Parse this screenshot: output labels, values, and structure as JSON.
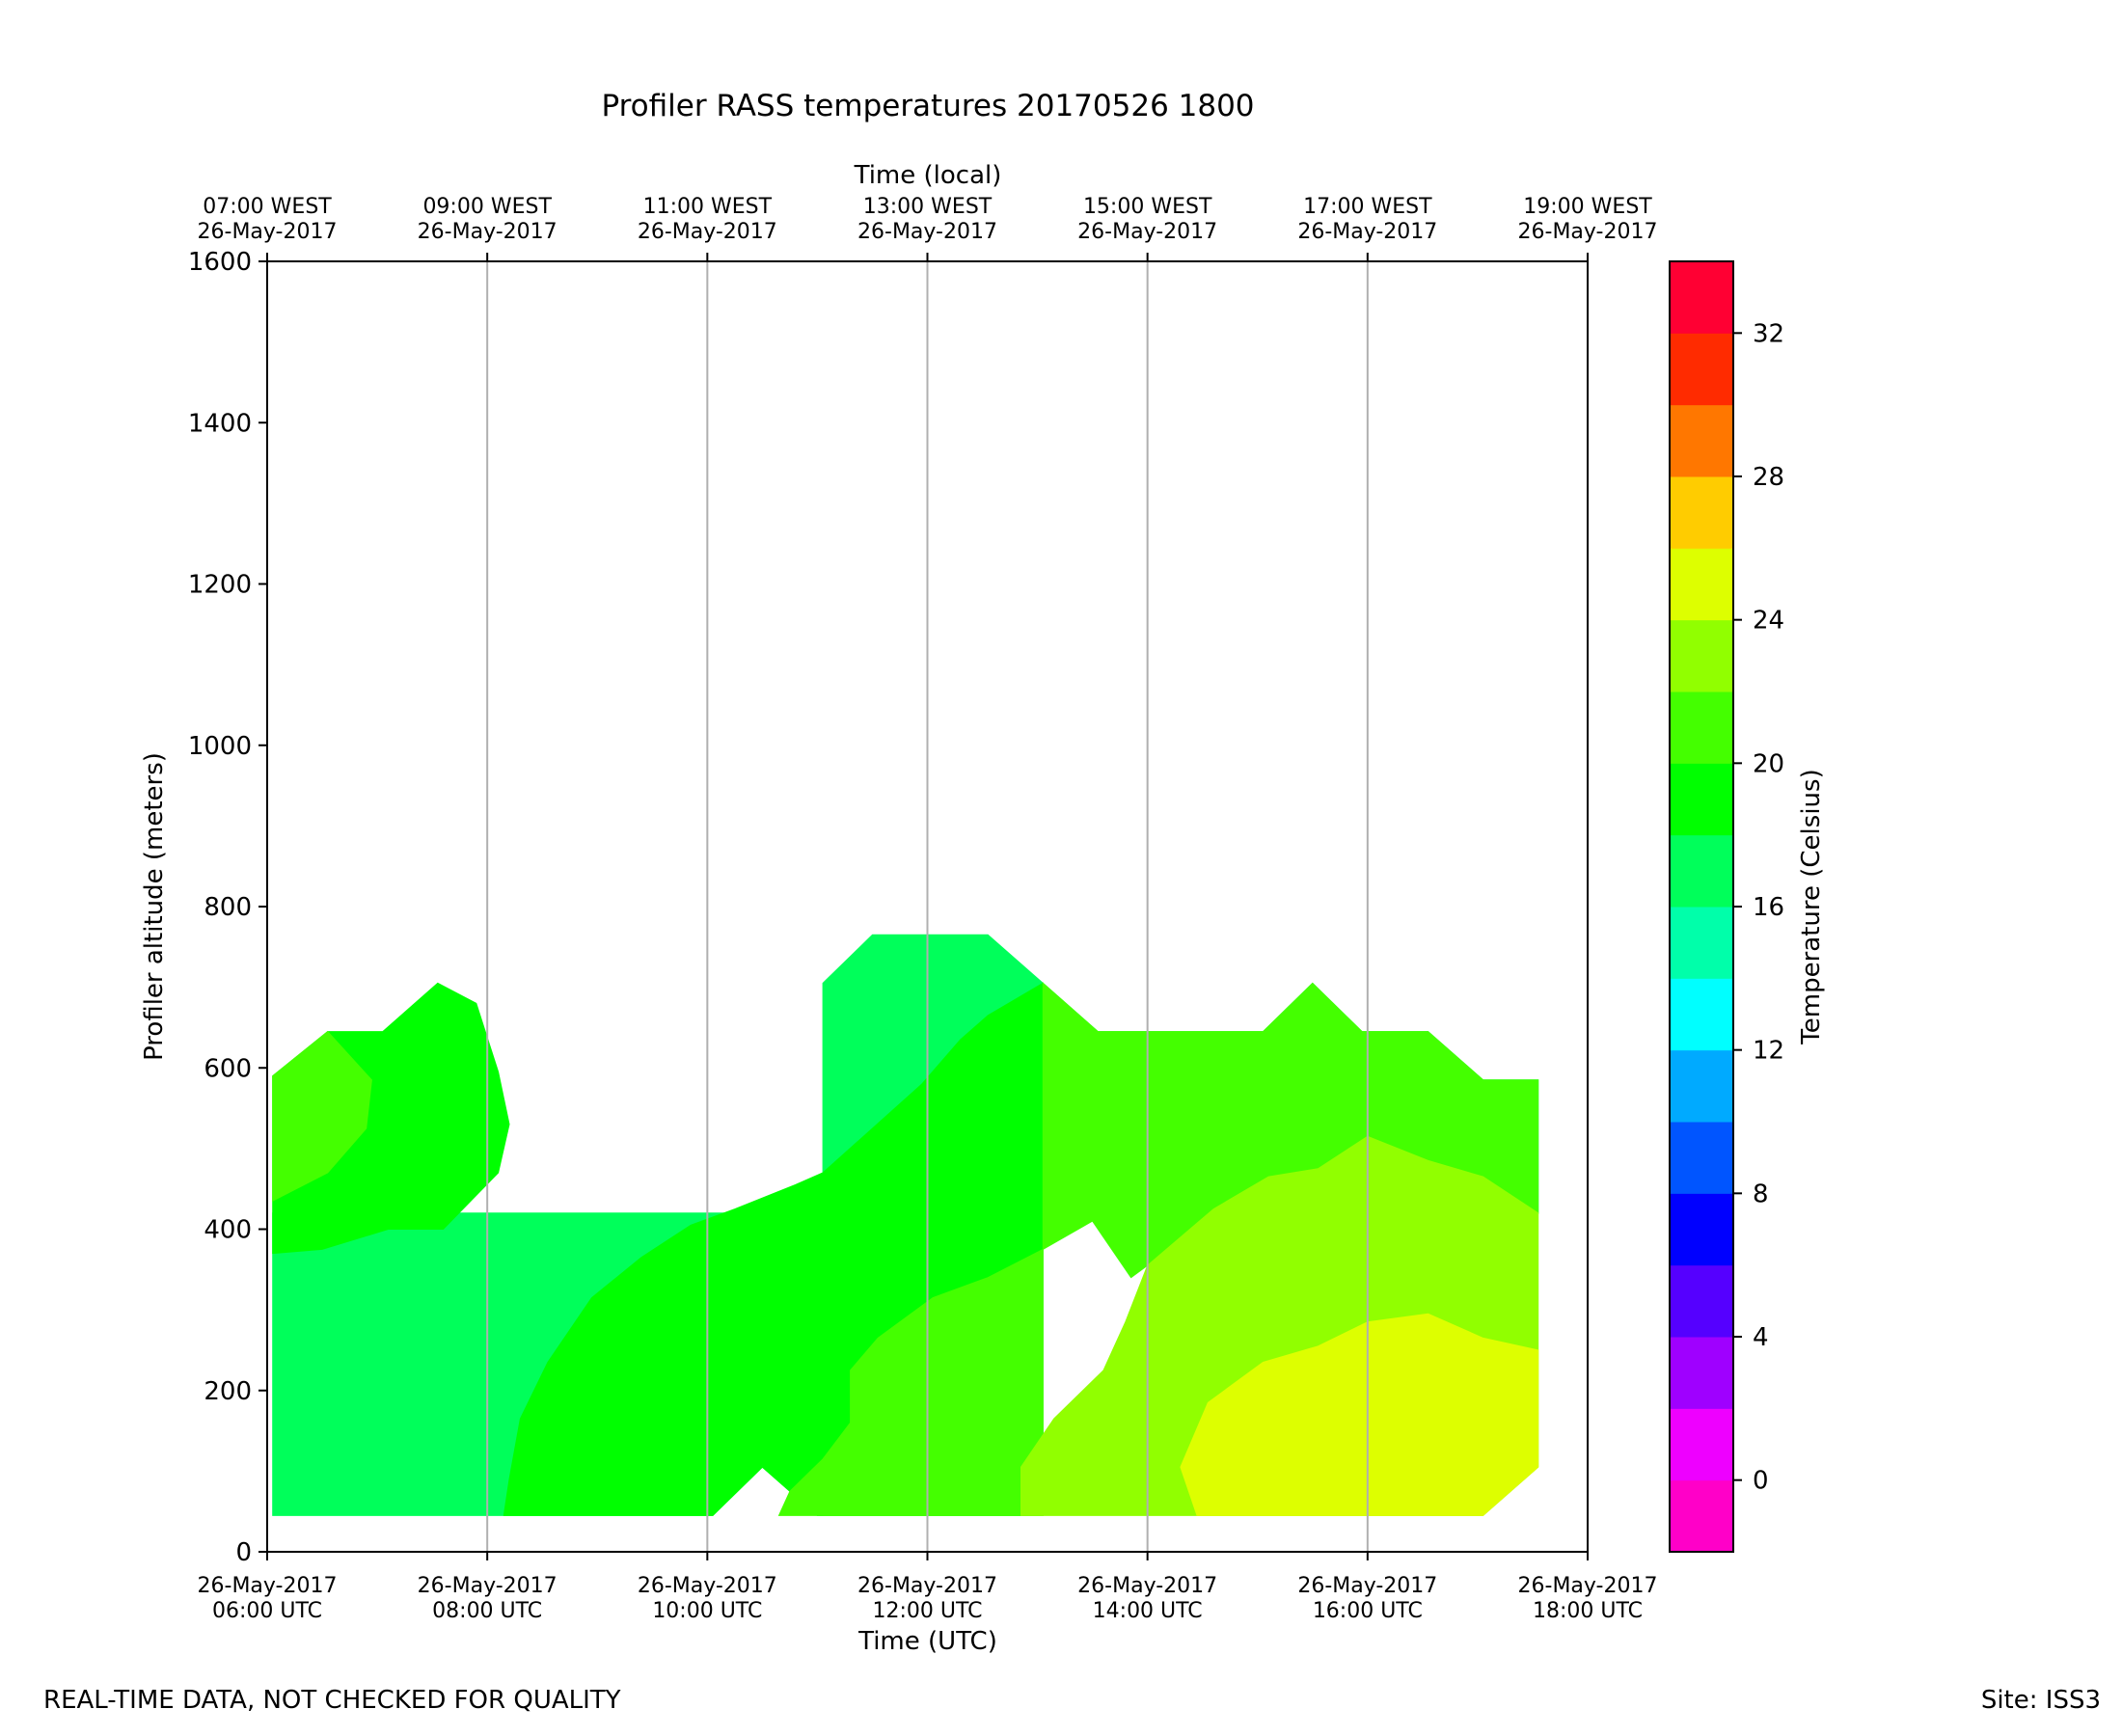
{
  "colors": {
    "background": "#ffffff",
    "axis": "#000000",
    "grid": "#b0b0b0"
  },
  "footer": {
    "disclaimer": "REAL-TIME DATA, NOT CHECKED FOR QUALITY",
    "site": "Site: ISS3"
  },
  "chart_data": {
    "type": "heatmap",
    "subtype": "filled-contour",
    "title": "Profiler RASS temperatures 20170526 1800",
    "xlabel": "Time (UTC)",
    "x2label": "Time (local)",
    "ylabel": "Profiler altitude (meters)",
    "colorbar_label": "Temperature (Celsius)",
    "xlim": [
      6,
      18
    ],
    "ylim": [
      0,
      1600
    ],
    "grid": "vertical",
    "x_ticks": [
      6,
      8,
      10,
      12,
      14,
      16,
      18
    ],
    "x_tick_labels": [
      [
        "26-May-2017",
        "06:00 UTC"
      ],
      [
        "26-May-2017",
        "08:00 UTC"
      ],
      [
        "26-May-2017",
        "10:00 UTC"
      ],
      [
        "26-May-2017",
        "12:00 UTC"
      ],
      [
        "26-May-2017",
        "14:00 UTC"
      ],
      [
        "26-May-2017",
        "16:00 UTC"
      ],
      [
        "26-May-2017",
        "18:00 UTC"
      ]
    ],
    "x2_tick_labels": [
      [
        "07:00 WEST",
        "26-May-2017"
      ],
      [
        "09:00 WEST",
        "26-May-2017"
      ],
      [
        "11:00 WEST",
        "26-May-2017"
      ],
      [
        "13:00 WEST",
        "26-May-2017"
      ],
      [
        "15:00 WEST",
        "26-May-2017"
      ],
      [
        "17:00 WEST",
        "26-May-2017"
      ],
      [
        "19:00 WEST",
        "26-May-2017"
      ]
    ],
    "y_ticks": [
      0,
      200,
      400,
      600,
      800,
      1000,
      1200,
      1400,
      1600
    ],
    "colorbar": {
      "min": -2,
      "max": 34,
      "step": 2,
      "ticks": [
        0,
        4,
        8,
        12,
        16,
        20,
        24,
        28,
        32
      ],
      "bands": [
        {
          "from": -2,
          "to": 0,
          "color": "#ff00c8"
        },
        {
          "from": 0,
          "to": 2,
          "color": "#ee00ff"
        },
        {
          "from": 2,
          "to": 4,
          "color": "#9f00ff"
        },
        {
          "from": 4,
          "to": 6,
          "color": "#5500ff"
        },
        {
          "from": 6,
          "to": 8,
          "color": "#0000ff"
        },
        {
          "from": 8,
          "to": 10,
          "color": "#0055ff"
        },
        {
          "from": 10,
          "to": 12,
          "color": "#00aaff"
        },
        {
          "from": 12,
          "to": 14,
          "color": "#00ffff"
        },
        {
          "from": 14,
          "to": 16,
          "color": "#00ffaa"
        },
        {
          "from": 16,
          "to": 18,
          "color": "#00ff5a"
        },
        {
          "from": 18,
          "to": 20,
          "color": "#00ff00"
        },
        {
          "from": 20,
          "to": 22,
          "color": "#44ff00"
        },
        {
          "from": 22,
          "to": 24,
          "color": "#91ff00"
        },
        {
          "from": 24,
          "to": 26,
          "color": "#ddff00"
        },
        {
          "from": 26,
          "to": 28,
          "color": "#ffcc00"
        },
        {
          "from": 28,
          "to": 30,
          "color": "#ff7700"
        },
        {
          "from": 30,
          "to": 32,
          "color": "#ff2b00"
        },
        {
          "from": 32,
          "to": 34,
          "color": "#ff0033"
        }
      ]
    },
    "regions": [
      {
        "temp_band": "16-18",
        "color": "#00ff5a",
        "points": [
          [
            6.05,
            45
          ],
          [
            10.05,
            45
          ],
          [
            10.5,
            105
          ],
          [
            11.0,
            45
          ],
          [
            11.0,
            45
          ],
          [
            11.05,
            45
          ],
          [
            11.05,
            705
          ],
          [
            11.5,
            765
          ],
          [
            12.55,
            765
          ],
          [
            13.05,
            705
          ],
          [
            13.55,
            645
          ],
          [
            14.1,
            645
          ],
          [
            14.1,
            645
          ],
          [
            15.05,
            645
          ],
          [
            15.5,
            705
          ],
          [
            15.95,
            645
          ],
          [
            16.55,
            645
          ],
          [
            17.05,
            585
          ],
          [
            17.55,
            585
          ],
          [
            17.55,
            420
          ],
          [
            6.05,
            420
          ]
        ]
      },
      {
        "temp_band": "18-20",
        "color": "#00ff00",
        "points": [
          [
            6.05,
            370
          ],
          [
            6.5,
            375
          ],
          [
            7.1,
            400
          ],
          [
            7.6,
            400
          ],
          [
            8.1,
            470
          ],
          [
            8.2,
            530
          ],
          [
            8.1,
            595
          ],
          [
            7.9,
            680
          ],
          [
            7.55,
            705
          ],
          [
            7.05,
            645
          ],
          [
            6.55,
            645
          ],
          [
            6.05,
            590
          ]
        ]
      },
      {
        "temp_band": "20-22",
        "color": "#44ff00",
        "points": [
          [
            6.05,
            435
          ],
          [
            6.55,
            470
          ],
          [
            6.9,
            525
          ],
          [
            6.95,
            585
          ],
          [
            6.55,
            645
          ],
          [
            6.05,
            590
          ]
        ]
      },
      {
        "temp_band": "18-20",
        "color": "#00ff00",
        "points": [
          [
            8.15,
            45
          ],
          [
            10.05,
            45
          ],
          [
            10.5,
            105
          ],
          [
            11.0,
            45
          ],
          [
            13.05,
            45
          ],
          [
            13.05,
            705
          ],
          [
            12.55,
            665
          ],
          [
            12.3,
            635
          ],
          [
            11.95,
            580
          ],
          [
            11.5,
            525
          ],
          [
            11.05,
            470
          ],
          [
            10.8,
            455
          ],
          [
            10.25,
            425
          ],
          [
            9.85,
            405
          ],
          [
            9.4,
            365
          ],
          [
            8.95,
            315
          ],
          [
            8.55,
            235
          ],
          [
            8.3,
            165
          ],
          [
            8.2,
            90
          ]
        ]
      },
      {
        "temp_band": "20-22",
        "color": "#44ff00",
        "points": [
          [
            10.65,
            45
          ],
          [
            13.05,
            45
          ],
          [
            13.05,
            705
          ],
          [
            13.55,
            645
          ],
          [
            14.1,
            645
          ],
          [
            15.05,
            645
          ],
          [
            15.5,
            705
          ],
          [
            15.95,
            645
          ],
          [
            16.55,
            645
          ],
          [
            17.05,
            585
          ],
          [
            17.55,
            585
          ],
          [
            17.55,
            420
          ],
          [
            17.05,
            465
          ],
          [
            16.55,
            485
          ],
          [
            16.0,
            515
          ],
          [
            15.55,
            475
          ],
          [
            15.1,
            465
          ],
          [
            14.6,
            425
          ],
          [
            14.0,
            355
          ],
          [
            13.85,
            340
          ],
          [
            13.5,
            410
          ],
          [
            13.05,
            375
          ],
          [
            12.55,
            340
          ],
          [
            12.05,
            315
          ],
          [
            11.55,
            265
          ],
          [
            11.3,
            225
          ],
          [
            11.3,
            160
          ],
          [
            11.05,
            115
          ],
          [
            10.75,
            75
          ]
        ]
      },
      {
        "temp_band": "22-24",
        "color": "#91ff00",
        "points": [
          [
            13.85,
            45
          ],
          [
            17.05,
            45
          ],
          [
            17.55,
            105
          ],
          [
            17.55,
            420
          ],
          [
            17.05,
            465
          ],
          [
            16.55,
            485
          ],
          [
            16.0,
            515
          ],
          [
            15.55,
            475
          ],
          [
            15.1,
            465
          ],
          [
            14.6,
            425
          ],
          [
            14.0,
            355
          ],
          [
            13.8,
            285
          ],
          [
            13.6,
            225
          ],
          [
            13.15,
            165
          ],
          [
            12.85,
            105
          ],
          [
            12.85,
            45
          ]
        ]
      },
      {
        "temp_band": "24-26",
        "color": "#ddff00",
        "points": [
          [
            14.45,
            45
          ],
          [
            17.05,
            45
          ],
          [
            17.55,
            105
          ],
          [
            17.55,
            250
          ],
          [
            17.05,
            265
          ],
          [
            16.55,
            295
          ],
          [
            16.0,
            285
          ],
          [
            15.55,
            255
          ],
          [
            15.05,
            235
          ],
          [
            14.55,
            185
          ],
          [
            14.3,
            105
          ]
        ]
      }
    ]
  }
}
